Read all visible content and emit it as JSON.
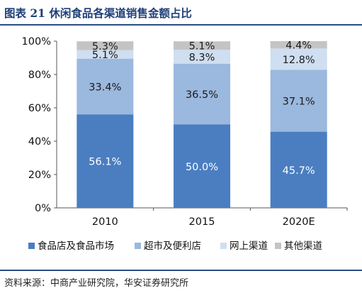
{
  "header": {
    "title": "图表 21  休闲食品各渠道销售金额占比"
  },
  "footer": {
    "source": "资料来源：中商产业研究院，华安证券研究所"
  },
  "chart_data": {
    "type": "bar",
    "stacked": true,
    "categories": [
      "2010",
      "2015",
      "2020E"
    ],
    "ylim": [
      0,
      100
    ],
    "yticks": [
      "0%",
      "20%",
      "40%",
      "60%",
      "80%",
      "100%"
    ],
    "grid": false,
    "legend_position": "bottom",
    "series": [
      {
        "name": "食品店及食品市场",
        "values": [
          56.1,
          50.0,
          45.7
        ],
        "labels": [
          "56.1%",
          "50.0%",
          "45.7%"
        ],
        "color": "#4a7ec1"
      },
      {
        "name": "超市及便利店",
        "values": [
          33.4,
          36.5,
          37.1
        ],
        "labels": [
          "33.4%",
          "36.5%",
          "37.1%"
        ],
        "color": "#9bb8de"
      },
      {
        "name": "网上渠道",
        "values": [
          5.1,
          8.3,
          12.8
        ],
        "labels": [
          "5.1%",
          "8.3%",
          "12.8%"
        ],
        "color": "#cfdef1"
      },
      {
        "name": "其他渠道",
        "values": [
          5.3,
          5.1,
          4.4
        ],
        "labels": [
          "5.3%",
          "5.1%",
          "4.4%"
        ],
        "color": "#c4c4c4"
      }
    ]
  }
}
